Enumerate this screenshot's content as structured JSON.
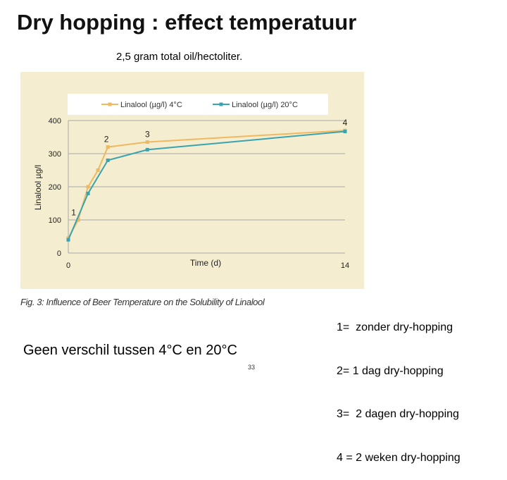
{
  "slide": {
    "title": "Dry hopping : effect temperatuur",
    "subtitle": "2,5 gram total oil/hectoliter.",
    "caption": "Fig. 3: Influence of Beer Temperature on the Solubility of Linalool",
    "conclusion": "Geen verschil tussen 4°C en 20°C",
    "page_number": "33",
    "notes": [
      "1=  zonder dry-hopping",
      "2= 1 dag dry-hopping",
      "3=  2 dagen dry-hopping",
      "4 = 2 weken dry-hopping"
    ]
  },
  "colors": {
    "plot_background": "#f4edcf",
    "gridline": "#a9a9a9",
    "series_4C": "#f0b860",
    "series_20C": "#3aa3b0",
    "legend_background": "#ffffff"
  },
  "chart_data": {
    "type": "line",
    "title": "",
    "xlabel": "Time (d)",
    "ylabel": "Linalool µg/l",
    "xlim": [
      0,
      14
    ],
    "ylim": [
      0,
      400
    ],
    "x_tick_labels": [
      "0",
      "14"
    ],
    "y_tick_labels": [
      "0",
      "100",
      "200",
      "300",
      "400"
    ],
    "grid": true,
    "legend_position": "top",
    "series": [
      {
        "name": "Linalool (µg/l) 4°C",
        "color_key": "series_4C",
        "x": [
          0,
          0.5,
          1,
          1.5,
          2,
          4,
          14
        ],
        "y": [
          45,
          100,
          200,
          250,
          320,
          335,
          370
        ]
      },
      {
        "name": "Linalool (µg/l) 20°C",
        "color_key": "series_20C",
        "x": [
          0,
          1,
          2,
          4,
          14
        ],
        "y": [
          40,
          180,
          280,
          312,
          367
        ]
      }
    ],
    "point_labels": [
      {
        "text": "1",
        "x": 0.2,
        "y": 80
      },
      {
        "text": "2",
        "x": 2,
        "y": 320
      },
      {
        "text": "3",
        "x": 4,
        "y": 335
      },
      {
        "text": "4",
        "x": 14,
        "y": 370
      }
    ]
  }
}
